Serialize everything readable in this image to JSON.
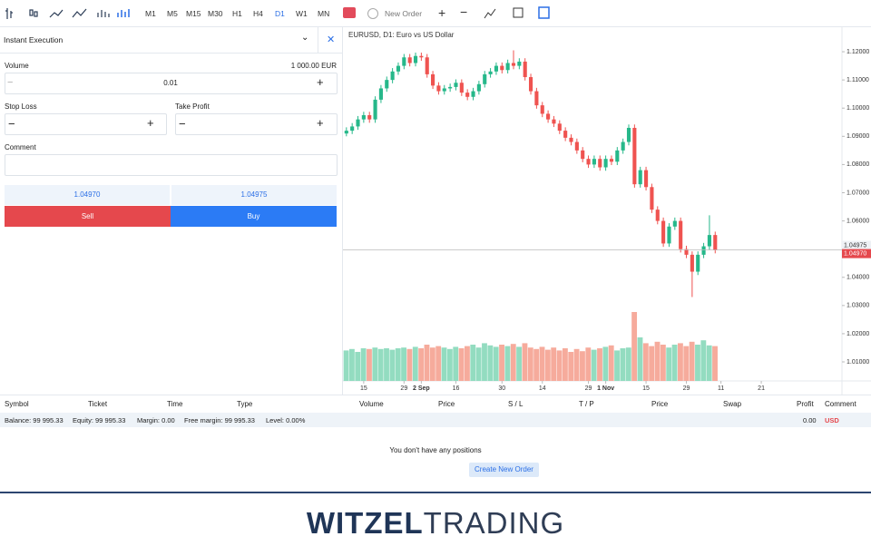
{
  "toolbar": {
    "timeframes": [
      "M1",
      "M5",
      "M15",
      "M30",
      "H1",
      "H4",
      "D1",
      "W1",
      "MN"
    ],
    "active_timeframe": "D1",
    "new_order": "New Order"
  },
  "order_panel": {
    "title": "Instant Execution",
    "volume_label": "Volume",
    "volume_info": "1 000.00 EUR",
    "volume": "0.01",
    "stop_loss": "Stop Loss",
    "take_profit": "Take Profit",
    "comment": "Comment",
    "bid": "1.04970",
    "ask": "1.04975",
    "sell": "Sell",
    "buy": "Buy"
  },
  "chart": {
    "type": "candlestick",
    "title": "EURUSD, D1: Euro vs US Dollar",
    "up_color": "#26b88a",
    "down_color": "#ef5350",
    "volume_up_color": "#93dcc0",
    "volume_down_color": "#f6ab9c",
    "ylim": [
      1.00325,
      1.1287
    ],
    "vlim": [
      0,
      100
    ],
    "xlim": [
      -0.6,
      86
    ],
    "yticks": [
      {
        "value": 1.12,
        "label": "1.12000"
      },
      {
        "value": 1.11,
        "label": "1.11000"
      },
      {
        "value": 1.1,
        "label": "1.10000"
      },
      {
        "value": 1.09,
        "label": "1.09000"
      },
      {
        "value": 1.08,
        "label": "1.08000"
      },
      {
        "value": 1.07,
        "label": "1.07000"
      },
      {
        "value": 1.06,
        "label": "1.06000"
      },
      {
        "value": 1.04,
        "label": "1.04000"
      },
      {
        "value": 1.03,
        "label": "1.03000"
      },
      {
        "value": 1.02,
        "label": "1.02000"
      },
      {
        "value": 1.01,
        "label": "1.01000"
      }
    ],
    "xticks": [
      {
        "value": 3,
        "label": "15"
      },
      {
        "value": 10,
        "label": "29"
      },
      {
        "value": 13,
        "label": "2 Sep"
      },
      {
        "value": 19,
        "label": "16"
      },
      {
        "value": 27,
        "label": "30"
      },
      {
        "value": 34,
        "label": "14"
      },
      {
        "value": 42,
        "label": "29"
      },
      {
        "value": 45,
        "label": "1 Nov"
      },
      {
        "value": 52,
        "label": "15"
      },
      {
        "value": 59,
        "label": "29"
      },
      {
        "value": 65,
        "label": "11"
      },
      {
        "value": 72,
        "label": "21"
      }
    ],
    "ask": {
      "value": 1.04975,
      "label": "1.04975"
    },
    "bid": {
      "value": 1.0497,
      "label": "1.04970"
    },
    "candles": [
      [
        1.091,
        1.0932,
        1.09,
        1.092
      ],
      [
        1.092,
        1.0947,
        1.0908,
        1.0935
      ],
      [
        1.0935,
        1.0972,
        1.0923,
        1.096
      ],
      [
        1.096,
        1.0987,
        1.0948,
        1.0975
      ],
      [
        1.0975,
        1.0987,
        1.0948,
        1.096
      ],
      [
        1.096,
        1.1042,
        1.0948,
        1.103
      ],
      [
        1.103,
        1.1082,
        1.1018,
        1.107
      ],
      [
        1.107,
        1.1112,
        1.1058,
        1.11
      ],
      [
        1.11,
        1.1142,
        1.1088,
        1.113
      ],
      [
        1.113,
        1.1162,
        1.1118,
        1.115
      ],
      [
        1.115,
        1.1192,
        1.1138,
        1.118
      ],
      [
        1.118,
        1.1192,
        1.1148,
        1.116
      ],
      [
        1.116,
        1.1197,
        1.1148,
        1.1185
      ],
      [
        1.1185,
        1.1197,
        1.1168,
        1.118
      ],
      [
        1.118,
        1.1192,
        1.1108,
        1.112
      ],
      [
        1.112,
        1.1132,
        1.1068,
        1.108
      ],
      [
        1.108,
        1.1092,
        1.1048,
        1.106
      ],
      [
        1.106,
        1.1082,
        1.1048,
        1.107
      ],
      [
        1.107,
        1.1087,
        1.1058,
        1.1075
      ],
      [
        1.1075,
        1.1102,
        1.1063,
        1.109
      ],
      [
        1.109,
        1.1102,
        1.1043,
        1.1055
      ],
      [
        1.1055,
        1.1067,
        1.1028,
        1.104
      ],
      [
        1.104,
        1.1072,
        1.1028,
        1.106
      ],
      [
        1.106,
        1.1097,
        1.1048,
        1.1085
      ],
      [
        1.1085,
        1.1132,
        1.1073,
        1.112
      ],
      [
        1.112,
        1.1142,
        1.1108,
        1.113
      ],
      [
        1.113,
        1.1162,
        1.1118,
        1.115
      ],
      [
        1.115,
        1.1162,
        1.1123,
        1.1135
      ],
      [
        1.1135,
        1.1172,
        1.1123,
        1.116
      ],
      [
        1.116,
        1.1205,
        1.1138,
        1.115
      ],
      [
        1.115,
        1.1177,
        1.1138,
        1.1165
      ],
      [
        1.1165,
        1.1177,
        1.1098,
        1.111
      ],
      [
        1.111,
        1.1122,
        1.1048,
        1.106
      ],
      [
        1.106,
        1.1072,
        1.0998,
        1.101
      ],
      [
        1.101,
        1.1022,
        1.0968,
        1.098
      ],
      [
        1.098,
        1.0992,
        1.0948,
        1.096
      ],
      [
        1.096,
        1.0972,
        1.0933,
        1.0945
      ],
      [
        1.0945,
        1.0957,
        1.0908,
        1.092
      ],
      [
        1.092,
        1.0932,
        1.0883,
        1.0895
      ],
      [
        1.0895,
        1.0907,
        1.0868,
        1.088
      ],
      [
        1.088,
        1.0892,
        1.0838,
        1.085
      ],
      [
        1.085,
        1.0862,
        1.0808,
        1.082
      ],
      [
        1.082,
        1.0832,
        1.0788,
        1.08
      ],
      [
        1.08,
        1.0832,
        1.0788,
        1.082
      ],
      [
        1.082,
        1.0832,
        1.0778,
        1.079
      ],
      [
        1.079,
        1.0832,
        1.0778,
        1.082
      ],
      [
        1.082,
        1.0832,
        1.0798,
        1.081
      ],
      [
        1.081,
        1.0862,
        1.0798,
        1.085
      ],
      [
        1.085,
        1.0892,
        1.0838,
        1.088
      ],
      [
        1.088,
        1.0942,
        1.0868,
        1.093
      ],
      [
        1.093,
        1.0942,
        1.0718,
        1.073
      ],
      [
        1.073,
        1.0792,
        1.0718,
        1.078
      ],
      [
        1.078,
        1.0792,
        1.0708,
        1.072
      ],
      [
        1.072,
        1.0732,
        1.0628,
        1.064
      ],
      [
        1.064,
        1.0652,
        1.0588,
        1.06
      ],
      [
        1.06,
        1.0612,
        1.0508,
        1.052
      ],
      [
        1.052,
        1.0592,
        1.0508,
        1.058
      ],
      [
        1.058,
        1.0612,
        1.0568,
        1.06
      ],
      [
        1.06,
        1.0612,
        1.0488,
        1.05
      ],
      [
        1.05,
        1.0512,
        1.0468,
        1.048
      ],
      [
        1.048,
        1.0492,
        1.033,
        1.042
      ],
      [
        1.042,
        1.0492,
        1.0408,
        1.048
      ],
      [
        1.048,
        1.0522,
        1.0468,
        1.051
      ],
      [
        1.051,
        1.062,
        1.0498,
        1.055
      ],
      [
        1.055,
        1.0562,
        1.0485,
        1.0497
      ]
    ],
    "volume": [
      42,
      44,
      40,
      45,
      44,
      46,
      44,
      45,
      43,
      45,
      46,
      44,
      47,
      45,
      50,
      46,
      48,
      46,
      44,
      47,
      45,
      48,
      50,
      46,
      52,
      49,
      47,
      50,
      48,
      51,
      47,
      52,
      46,
      44,
      47,
      43,
      46,
      42,
      45,
      40,
      44,
      41,
      46,
      43,
      45,
      47,
      49,
      42,
      45,
      46,
      95,
      60,
      52,
      48,
      54,
      50,
      46,
      50,
      52,
      48,
      54,
      50,
      56,
      49,
      48
    ]
  },
  "positions": {
    "headers": [
      "Symbol",
      "Ticket",
      "Time",
      "Type",
      "Volume",
      "Price",
      "S / L",
      "T / P",
      "Price",
      "Swap",
      "Profit",
      "Comment"
    ],
    "balance": "Balance: 99 995.33",
    "equity": "Equity: 99 995.33",
    "margin": "Margin: 0.00",
    "free_margin": "Free margin: 99 995.33",
    "level": "Level: 0.00%",
    "profit": "0.00",
    "currency": "USD",
    "empty": "You don't have any positions",
    "create": "Create New Order"
  },
  "footer": {
    "logo_a": "WITZEL",
    "logo_b": "TRADING"
  }
}
